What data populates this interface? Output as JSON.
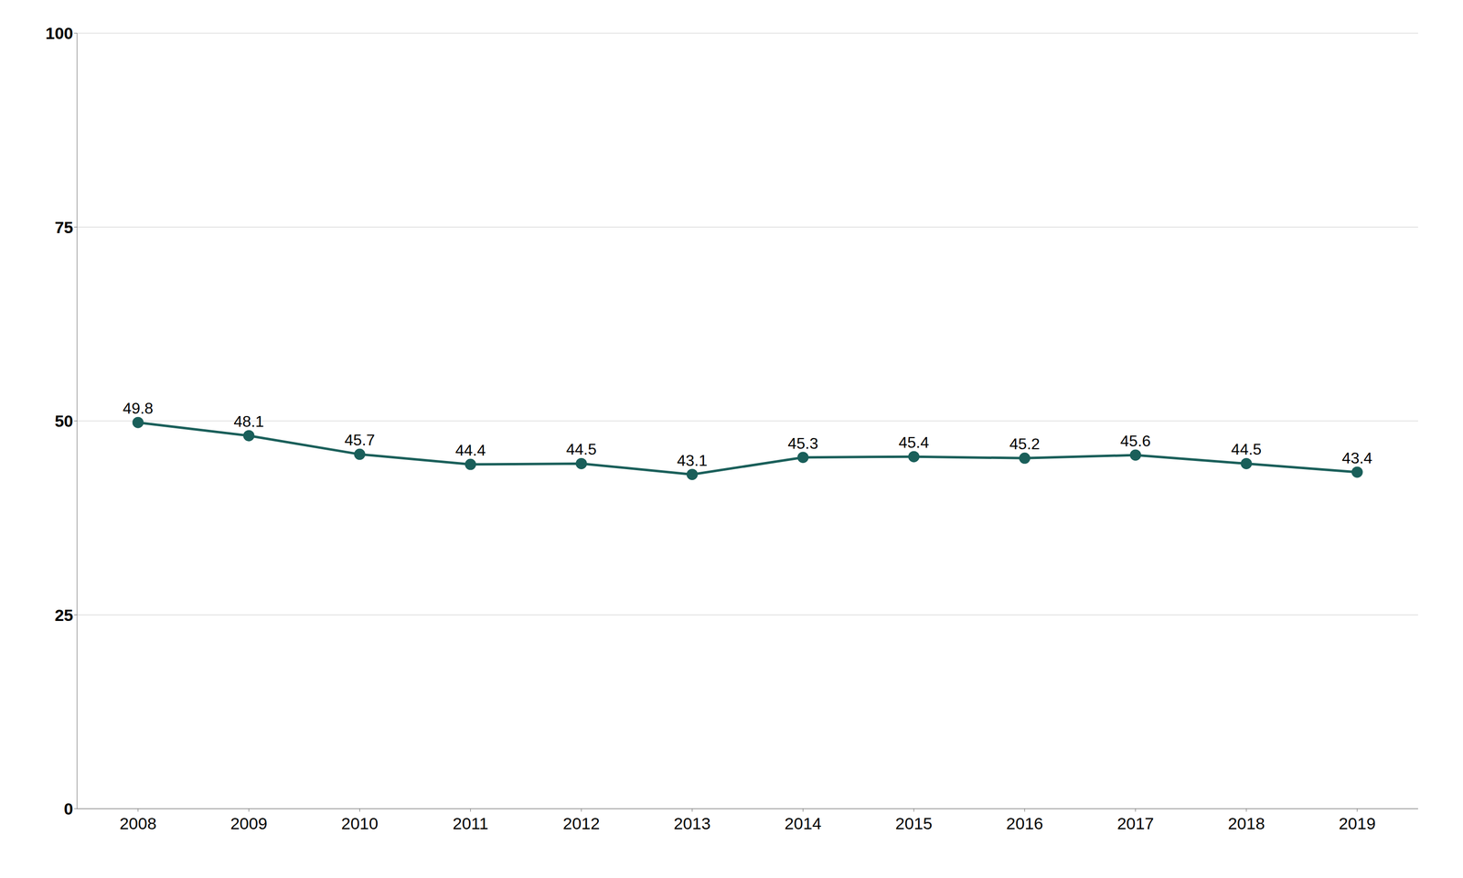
{
  "chart_data": {
    "type": "line",
    "x": [
      2008,
      2009,
      2010,
      2011,
      2012,
      2013,
      2014,
      2015,
      2016,
      2017,
      2018,
      2019
    ],
    "values": [
      49.8,
      48.1,
      45.7,
      44.4,
      44.5,
      43.1,
      45.3,
      45.4,
      45.2,
      45.6,
      44.5,
      43.4
    ],
    "color": "#1a5f5a",
    "marker": "circle",
    "xlim": [
      2007.45,
      2019.55
    ],
    "xticks": [
      2008,
      2009,
      2010,
      2011,
      2012,
      2013,
      2014,
      2015,
      2016,
      2017,
      2018,
      2019
    ],
    "ylim": [
      0,
      100
    ],
    "yticks": [
      0,
      25,
      50,
      75,
      100
    ],
    "grid": true,
    "data_labels": true
  }
}
